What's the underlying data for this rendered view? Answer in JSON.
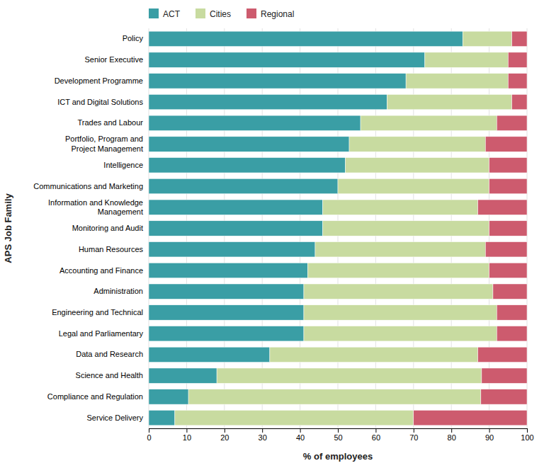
{
  "chart_data": {
    "type": "bar",
    "orientation": "horizontal",
    "stacked": true,
    "xlabel": "% of employees",
    "ylabel": "APS Job Family",
    "categories": [
      "Policy",
      "Senior Executive",
      "Development Programme",
      "ICT and Digital Solutions",
      "Trades and Labour",
      "Portfolio, Program and\nProject Management",
      "Intelligence",
      "Communications and Marketing",
      "Information and Knowledge\nManagement",
      "Monitoring and Audit",
      "Human Resources",
      "Accounting and Finance",
      "Administration",
      "Engineering and Technical",
      "Legal and Parliamentary",
      "Data and Research",
      "Science and Health",
      "Compliance and Regulation",
      "Service Delivery"
    ],
    "series": [
      {
        "name": "ACT",
        "color": "#3a9ea5",
        "values": [
          83.0,
          73.0,
          68.0,
          63.0,
          56.0,
          53.0,
          52.0,
          50.0,
          46.0,
          46.0,
          44.0,
          42.0,
          41.0,
          41.0,
          41.0,
          32.0,
          18.0,
          10.5,
          6.9
        ]
      },
      {
        "name": "Cities",
        "color": "#c8dba0",
        "values": [
          13.0,
          22.0,
          27.0,
          33.0,
          36.0,
          36.0,
          38.0,
          40.0,
          41.0,
          44.0,
          45.0,
          48.0,
          50.0,
          51.0,
          51.0,
          55.0,
          70.0,
          77.3,
          63.1
        ]
      },
      {
        "name": "Regional",
        "color": "#cd5b6e",
        "values": [
          4.0,
          5.0,
          5.0,
          4.0,
          8.0,
          11.0,
          10.0,
          10.0,
          13.0,
          10.0,
          11.0,
          10.0,
          9.0,
          8.0,
          8.0,
          13.0,
          12.0,
          12.2,
          30.0
        ]
      }
    ],
    "xlim": [
      0,
      100
    ],
    "xticks": [
      0,
      10,
      20,
      30,
      40,
      50,
      60,
      70,
      80,
      90,
      100
    ],
    "grid": true,
    "legend": "upper left"
  }
}
